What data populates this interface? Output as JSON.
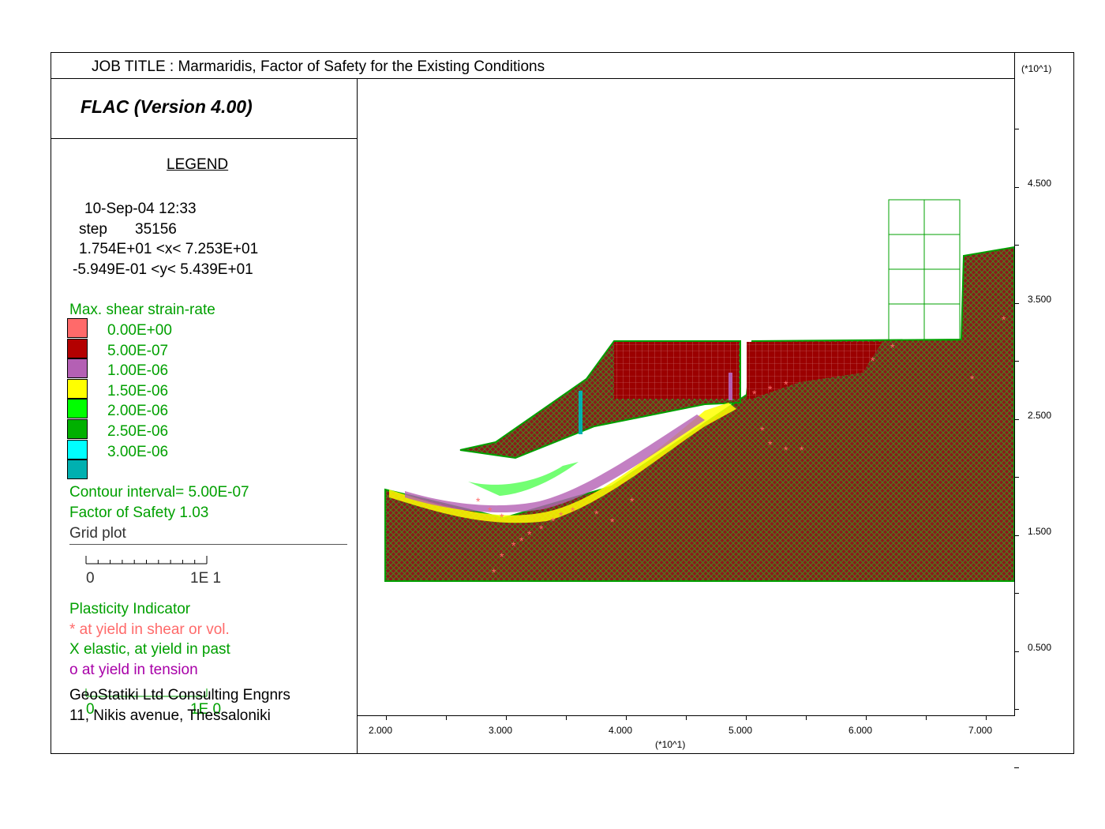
{
  "header": {
    "job_title": "JOB TITLE : Marmaridis, Factor of Safety for the Existing Conditions",
    "version": "FLAC (Version 4.00)"
  },
  "legend": {
    "heading": "LEGEND",
    "date_time": "10-Sep-04  12:33",
    "step_label": "step",
    "step_value": "35156",
    "x_range": "1.754E+01 <x<  7.253E+01",
    "y_range": "-5.949E-01 <y<  5.439E+01",
    "contour_title": "Max. shear strain-rate",
    "contours": [
      {
        "label": "0.00E+00",
        "color": "#ff6a6a"
      },
      {
        "label": "5.00E-07",
        "color": "#b30000"
      },
      {
        "label": "1.00E-06",
        "color": "#b460b4"
      },
      {
        "label": "1.50E-06",
        "color": "#ffff00"
      },
      {
        "label": "2.00E-06",
        "color": "#00ff00"
      },
      {
        "label": "2.50E-06",
        "color": "#00b000"
      },
      {
        "label": "3.00E-06",
        "color": "#00ffff"
      },
      {
        "label": "",
        "color": "#00b0b0"
      }
    ],
    "contour_interval": "Contour interval=  5.00E-07",
    "factor_of_safety": "Factor of Safety  1.03",
    "grid_plot": "Grid plot",
    "scale_zero": "0",
    "scale_end": "1E  1",
    "plasticity_title": "Plasticity Indicator",
    "plasticity_shear": "* at yield in shear or vol.",
    "plasticity_elastic": "X elastic, at yield in past",
    "plasticity_tension": "o at yield in tension",
    "company": "GeoStatiki Ltd Consulting Engnrs",
    "address": "11, Nikis avenue, Thessaloniki",
    "overlap_zero": "0",
    "overlap_end": "1E  0"
  },
  "axes": {
    "y_multiplier": "(*10^1)",
    "x_multiplier": "(*10^1)",
    "y_ticks": [
      "4.500",
      "3.500",
      "2.500",
      "1.500",
      "0.500"
    ],
    "x_ticks": [
      "2.000",
      "3.000",
      "4.000",
      "5.000",
      "6.000",
      "7.000"
    ]
  },
  "colors": {
    "soil": "#8b1a1a",
    "mesh": "#00a000",
    "yield_shear": "#ff6a6a",
    "frame": "#000000"
  }
}
